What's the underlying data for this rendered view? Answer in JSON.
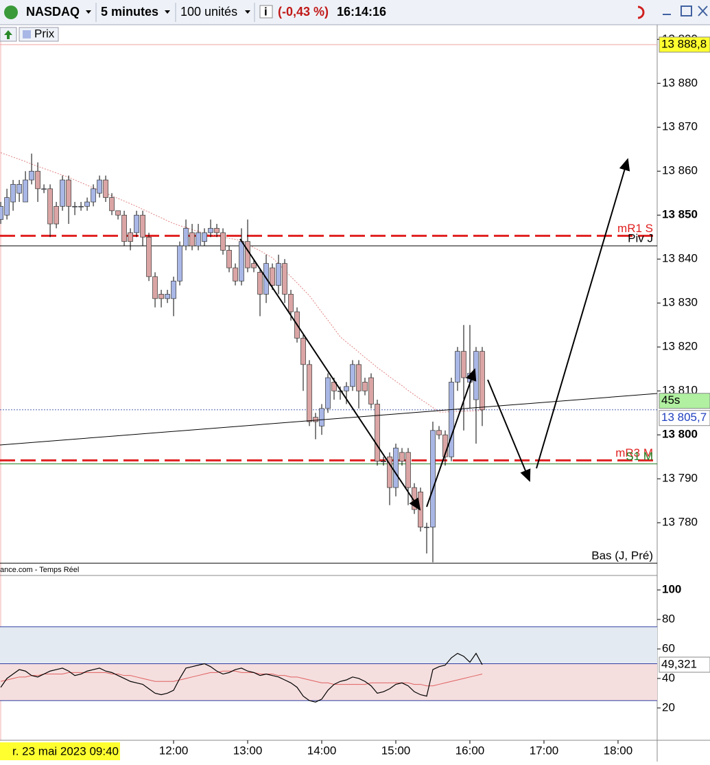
{
  "toolbar": {
    "instrument": "NASDAQ",
    "interval": "5 minutes",
    "quantity": "100 unités",
    "change": "(-0,43 %)",
    "time": "16:14:16"
  },
  "chart_data": [
    {
      "type": "candlestick",
      "legend": "Prix",
      "watermark": "ance.com - Temps Réel",
      "date_label": "r. 23 mai 2023 09:40",
      "up_color": "#a9b7e6",
      "down_color": "#dba5a5",
      "x": [
        580,
        585,
        590,
        595,
        600,
        605,
        610,
        615,
        620,
        625,
        630,
        635,
        640,
        645,
        650,
        655,
        660,
        665,
        670,
        675,
        680,
        685,
        690,
        695,
        700,
        705,
        710,
        715,
        720,
        725,
        730,
        735,
        740,
        745,
        750,
        755,
        760,
        765,
        770,
        775,
        780,
        785,
        790,
        795,
        800,
        805,
        810,
        815,
        820,
        825,
        830,
        835,
        840,
        845,
        850,
        855,
        860,
        865,
        870,
        875,
        880,
        885,
        890,
        895,
        900,
        905,
        910,
        915,
        920,
        925,
        930,
        935,
        940,
        945,
        950,
        955,
        960,
        965,
        970
      ],
      "open": [
        13849,
        13850,
        13853,
        13855,
        13853,
        13858,
        13860,
        13856,
        13856,
        13852,
        13852,
        13858,
        13852,
        13852,
        13852,
        13853,
        13855,
        13858,
        13854,
        13851,
        13850,
        13846,
        13846,
        13850,
        13845,
        13836,
        13832,
        13831,
        13831,
        13835,
        13843,
        13846,
        13843,
        13844,
        13846,
        13847,
        13846,
        13842,
        13838,
        13835,
        13844,
        13839,
        13837,
        13832,
        13838,
        13834,
        13839,
        13832,
        13828,
        13822,
        13816,
        13804,
        13802,
        13806,
        13812,
        13810,
        13810,
        13811,
        13816,
        13812,
        13813,
        13807,
        13794,
        13795,
        13788,
        13796,
        13796,
        13788,
        13787,
        13779,
        13779,
        13801,
        13800,
        13795,
        13812,
        13819,
        13812,
        13808,
        13819
      ],
      "high": [
        13853,
        13856,
        13858,
        13858,
        13860,
        13864,
        13862,
        13857,
        13857,
        13853,
        13859,
        13859,
        13853,
        13853,
        13854,
        13857,
        13859,
        13859,
        13855,
        13851,
        13851,
        13847,
        13851,
        13851,
        13846,
        13837,
        13833,
        13833,
        13836,
        13844,
        13849,
        13848,
        13848,
        13847,
        13849,
        13848,
        13847,
        13843,
        13839,
        13847,
        13849,
        13840,
        13838,
        13841,
        13839,
        13841,
        13840,
        13833,
        13829,
        13823,
        13817,
        13805,
        13807,
        13814,
        13813,
        13811,
        13812,
        13817,
        13817,
        13813,
        13814,
        13808,
        13795,
        13796,
        13798,
        13797,
        13797,
        13789,
        13788,
        13780,
        13803,
        13802,
        13801,
        13813,
        13820,
        13825,
        13825,
        13820,
        13820
      ],
      "low": [
        13848,
        13849,
        13851,
        13853,
        13853,
        13857,
        13853,
        13855,
        13845,
        13847,
        13851,
        13848,
        13850,
        13851,
        13851,
        13852,
        13854,
        13853,
        13850,
        13849,
        13843,
        13842,
        13845,
        13843,
        13835,
        13829,
        13829,
        13830,
        13827,
        13834,
        13842,
        13842,
        13842,
        13843,
        13845,
        13845,
        13841,
        13837,
        13834,
        13834,
        13837,
        13837,
        13827,
        13830,
        13833,
        13832,
        13830,
        13826,
        13821,
        13810,
        13802,
        13799,
        13800,
        13805,
        13808,
        13808,
        13807,
        13810,
        13806,
        13809,
        13806,
        13793,
        13793,
        13784,
        13786,
        13793,
        13784,
        13782,
        13778,
        13773,
        13771,
        13799,
        13793,
        13794,
        13810,
        13801,
        13806,
        13798,
        13802
      ],
      "close": [
        13852,
        13854,
        13857,
        13857,
        13858,
        13860,
        13856,
        13856,
        13848,
        13848,
        13858,
        13852,
        13852,
        13852,
        13853,
        13856,
        13858,
        13854,
        13851,
        13850,
        13844,
        13844,
        13850,
        13845,
        13836,
        13831,
        13831,
        13832,
        13835,
        13843,
        13847,
        13843,
        13846,
        13846,
        13847,
        13846,
        13842,
        13838,
        13835,
        13844,
        13838,
        13838,
        13832,
        13839,
        13834,
        13839,
        13832,
        13828,
        13822,
        13816,
        13803,
        13803,
        13806,
        13813,
        13810,
        13810,
        13811,
        13816,
        13810,
        13810,
        13807,
        13794,
        13794,
        13788,
        13797,
        13794,
        13788,
        13783,
        13779,
        13779,
        13801,
        13800,
        13795,
        13812,
        13819,
        13813,
        13814,
        13819,
        13805.7
      ],
      "moving_average": {
        "color": "#e08080",
        "values": [
          13864.2,
          13863.7,
          13863.2,
          13862.7,
          13862.2,
          13861.6,
          13861.1,
          13860.6,
          13860.1,
          13859.6,
          13859.1,
          13858.6,
          13858.0,
          13857.4,
          13856.8,
          13856.2,
          13855.6,
          13855.0,
          13854.4,
          13853.8,
          13853.2,
          13852.6,
          13852.0,
          13851.3,
          13850.7,
          13850.0,
          13849.4,
          13848.7,
          13848.1,
          13847.6,
          13847.2,
          13846.7,
          13846.3,
          13845.8,
          13845.5,
          13845.3,
          13845.0,
          13844.7,
          13844.5,
          13844.2,
          13843.4,
          13842.6,
          13841.9,
          13841.1,
          13840.3,
          13838.9,
          13837.4,
          13836.0,
          13834.6,
          13833.1,
          13831.7,
          13829.8,
          13827.9,
          13826.1,
          13824.2,
          13822.3,
          13821.1,
          13820.0,
          13818.8,
          13817.6,
          13816.5,
          13815.3,
          13814.3,
          13813.2,
          13812.2,
          13811.2,
          13810.1,
          13809.1,
          13808.1,
          13807.2,
          13806.2,
          13805.2,
          13805.2,
          13805.3,
          13805.3,
          13805.4,
          13805.4,
          13805.5,
          13805.5
        ]
      },
      "xlim": [
        579.4,
        1111.7
      ],
      "xticks": [
        {
          "value": 720,
          "label": "12:00"
        },
        {
          "value": 780,
          "label": "13:00"
        },
        {
          "value": 840,
          "label": "14:00"
        },
        {
          "value": 900,
          "label": "15:00"
        },
        {
          "value": 960,
          "label": "16:00"
        },
        {
          "value": 1020,
          "label": "17:00"
        },
        {
          "value": 1080,
          "label": "18:00"
        }
      ],
      "ylim": [
        13768,
        13892.7
      ],
      "yticks": [
        {
          "value": 13890,
          "label": "13 890"
        },
        {
          "value": 13880,
          "label": "13 880"
        },
        {
          "value": 13870,
          "label": "13 870"
        },
        {
          "value": 13860,
          "label": "13 860"
        },
        {
          "value": 13850,
          "label": "13 850"
        },
        {
          "value": 13840,
          "label": "13 840"
        },
        {
          "value": 13830,
          "label": "13 830"
        },
        {
          "value": 13820,
          "label": "13 820"
        },
        {
          "value": 13810,
          "label": "13 810"
        },
        {
          "value": 13800,
          "label": "13 800"
        },
        {
          "value": 13790,
          "label": "13 790"
        },
        {
          "value": 13780,
          "label": "13 780"
        }
      ],
      "levels": [
        {
          "label": "mR1 S",
          "value": 13845.3,
          "color": "#e02020",
          "dash": true
        },
        {
          "label": "Piv J",
          "value": 13843,
          "color": "#000000",
          "dash": false
        },
        {
          "label": "mR3 M",
          "value": 13794.2,
          "color": "#e02020",
          "dash": true
        },
        {
          "label": "S1 M",
          "value": 13793.4,
          "color": "#208020",
          "dash": false
        },
        {
          "label": "Bas (J, Pré)",
          "value": 13770.8,
          "color": "#000000",
          "dash": false
        }
      ],
      "top_line": {
        "value": 13888.8,
        "label": "13 888,8",
        "color": "#f0a0a0"
      },
      "last_price": {
        "value": 13805.7,
        "label": "13 805,7",
        "countdown": "45s"
      }
    },
    {
      "type": "line",
      "series": [
        {
          "color": "#000000",
          "values": [
            34,
            40,
            43,
            46,
            45,
            42,
            41,
            43,
            45,
            46,
            47,
            45,
            42,
            43,
            45,
            46,
            47,
            45,
            44,
            42,
            40,
            38,
            37,
            36,
            33,
            30,
            29,
            30,
            32,
            40,
            47,
            48,
            49,
            50,
            48,
            45,
            43,
            44,
            46,
            47,
            45,
            44,
            42,
            43,
            42,
            41,
            39,
            37,
            34,
            28,
            25,
            24,
            26,
            32,
            36,
            38,
            39,
            41,
            40,
            38,
            35,
            30,
            31,
            33,
            36,
            37,
            35,
            31,
            29,
            28,
            46,
            48,
            49,
            54,
            57,
            55,
            51,
            57,
            49.321
          ]
        },
        {
          "color": "#e06060",
          "values": [
            38,
            39,
            40,
            41,
            41,
            42,
            42,
            43,
            43,
            43,
            43,
            44,
            44,
            44,
            44,
            44,
            44,
            44,
            43,
            43,
            42,
            42,
            41,
            40,
            39,
            38,
            38,
            38,
            38,
            39,
            40,
            41,
            42,
            43,
            44,
            44,
            45,
            45,
            45,
            44,
            44,
            44,
            43,
            43,
            43,
            42,
            42,
            41,
            41,
            40,
            39,
            38,
            37,
            37,
            36,
            36,
            36,
            36,
            36,
            36,
            37,
            37,
            37,
            37,
            37,
            37,
            37,
            36,
            36,
            35,
            35,
            36,
            37,
            38,
            39,
            40,
            41,
            42,
            43
          ]
        }
      ],
      "ylim": [
        -1.9,
        109.8
      ],
      "yticks": [
        20,
        40,
        60,
        80,
        100
      ],
      "levels": [
        25,
        50,
        75
      ],
      "last_label": {
        "value": 49.321,
        "label": "49,321"
      }
    }
  ]
}
